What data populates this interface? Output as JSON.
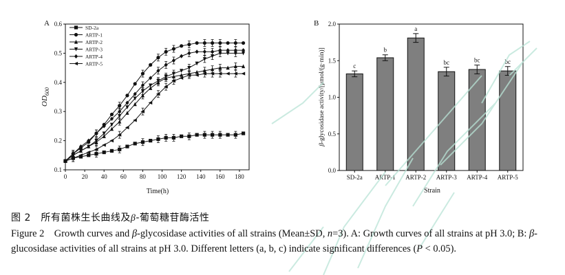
{
  "chart_data": [
    {
      "type": "line",
      "panel_label": "A",
      "xlabel": "Time(h)",
      "ylabel": "OD",
      "ylabel_sub": "600",
      "xlim": [
        0,
        190
      ],
      "ylim": [
        0.1,
        0.6
      ],
      "xticks": [
        "0",
        "20",
        "40",
        "60",
        "80",
        "100",
        "120",
        "140",
        "160",
        "180"
      ],
      "yticks": [
        "0.1",
        "0.2",
        "0.3",
        "0.4",
        "0.5",
        "0.6"
      ],
      "legend_position": "top-left",
      "x": [
        0,
        8,
        16,
        24,
        32,
        40,
        48,
        56,
        64,
        72,
        80,
        88,
        96,
        104,
        112,
        120,
        128,
        136,
        144,
        152,
        160,
        168,
        176,
        184
      ],
      "series": [
        {
          "name": "SD-2a",
          "marker": "square",
          "values": [
            0.13,
            0.14,
            0.145,
            0.15,
            0.155,
            0.16,
            0.165,
            0.17,
            0.18,
            0.19,
            0.195,
            0.2,
            0.205,
            0.21,
            0.21,
            0.215,
            0.215,
            0.22,
            0.22,
            0.22,
            0.22,
            0.22,
            0.22,
            0.225
          ]
        },
        {
          "name": "ARTP-1",
          "marker": "circle",
          "values": [
            0.13,
            0.155,
            0.175,
            0.195,
            0.225,
            0.255,
            0.29,
            0.32,
            0.355,
            0.395,
            0.43,
            0.46,
            0.485,
            0.505,
            0.515,
            0.525,
            0.53,
            0.535,
            0.535,
            0.535,
            0.535,
            0.535,
            0.535,
            0.535
          ]
        },
        {
          "name": "ARTP-2",
          "marker": "triangle-up",
          "values": [
            0.13,
            0.15,
            0.165,
            0.18,
            0.195,
            0.215,
            0.24,
            0.265,
            0.295,
            0.325,
            0.355,
            0.38,
            0.4,
            0.415,
            0.42,
            0.425,
            0.43,
            0.435,
            0.44,
            0.445,
            0.45,
            0.45,
            0.455,
            0.455
          ]
        },
        {
          "name": "ARTP-3",
          "marker": "triangle-down",
          "values": [
            0.13,
            0.15,
            0.165,
            0.18,
            0.2,
            0.225,
            0.255,
            0.285,
            0.315,
            0.345,
            0.37,
            0.39,
            0.405,
            0.42,
            0.43,
            0.44,
            0.45,
            0.465,
            0.48,
            0.49,
            0.5,
            0.5,
            0.5,
            0.5
          ]
        },
        {
          "name": "ARTP-4",
          "marker": "diamond",
          "values": [
            0.13,
            0.155,
            0.18,
            0.2,
            0.225,
            0.25,
            0.275,
            0.3,
            0.33,
            0.36,
            0.39,
            0.415,
            0.44,
            0.46,
            0.475,
            0.49,
            0.5,
            0.505,
            0.505,
            0.505,
            0.51,
            0.51,
            0.51,
            0.51
          ]
        },
        {
          "name": "ARTP-5",
          "marker": "triangle-left",
          "values": [
            0.13,
            0.14,
            0.15,
            0.16,
            0.17,
            0.185,
            0.2,
            0.22,
            0.245,
            0.27,
            0.3,
            0.33,
            0.36,
            0.385,
            0.405,
            0.415,
            0.425,
            0.425,
            0.43,
            0.43,
            0.43,
            0.43,
            0.43,
            0.43
          ]
        }
      ]
    },
    {
      "type": "bar",
      "panel_label": "B",
      "xlabel": "Strain",
      "ylabel_italic": "β",
      "ylabel": "-glycosidase activity/[μmol/(g·min)]",
      "ylim": [
        0.0,
        2.0
      ],
      "yticks": [
        "0.0",
        "0.5",
        "1.0",
        "1.5",
        "2.0"
      ],
      "categories": [
        "SD-2a",
        "ARTP-1",
        "ARTP-2",
        "ARTP-3",
        "ARTP-4",
        "ARTP-5"
      ],
      "values": [
        1.32,
        1.54,
        1.81,
        1.35,
        1.38,
        1.36
      ],
      "errors": [
        0.04,
        0.04,
        0.06,
        0.06,
        0.06,
        0.06
      ],
      "letters": [
        "c",
        "b",
        "a",
        "bc",
        "bc",
        "bc"
      ],
      "bar_color": "#7f7f7f"
    }
  ],
  "caption": {
    "cn_a": "图 2　所有菌株生长曲线及",
    "cn_beta": "β",
    "cn_b": "-葡萄糖苷酶活性",
    "en_a": "Figure 2　Growth curves and ",
    "en_beta": "β",
    "en_b": "-glycosidase activities of all strains (Mean±SD, ",
    "en_n": "n",
    "en_c": "=3). A: Growth curves of all strains at pH 3.0; B: ",
    "en_beta2": "β",
    "en_d": "-glucosidase activities of all strains at pH 3.0. Different letters (a, b, c) indicate significant differences (",
    "en_p": "P",
    "en_e": " < 0.05)."
  },
  "colors": {
    "ink": "#111111",
    "bar": "#7f7f7f",
    "watermark": "#b9e4d6"
  }
}
